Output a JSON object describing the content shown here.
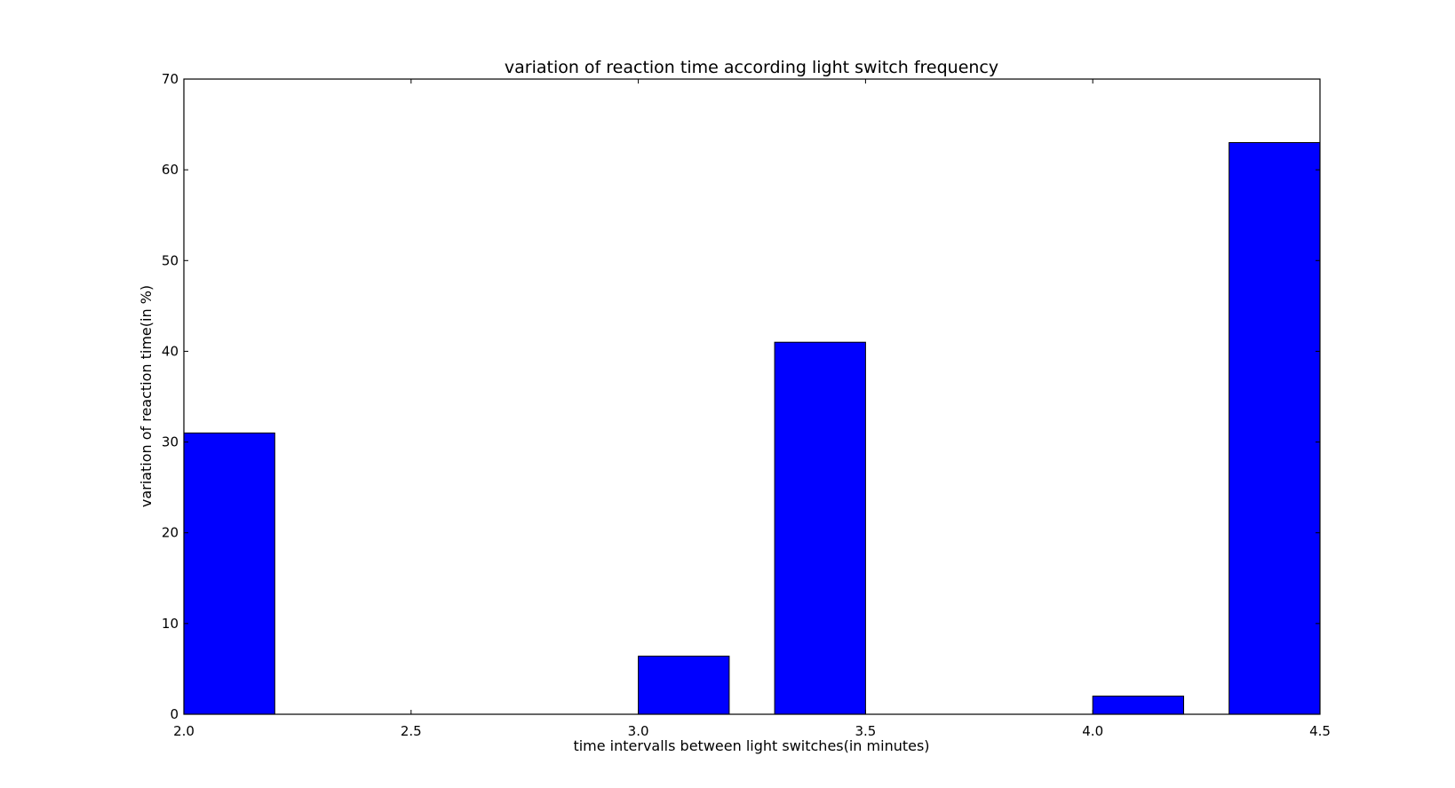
{
  "chart_data": {
    "type": "bar",
    "title": "variation of reaction time according light switch frequency",
    "xlabel": "time intervalls between light switches(in minutes)",
    "ylabel": "variation of reaction time(in %)",
    "xlim": [
      2.0,
      4.5
    ],
    "ylim": [
      0,
      70
    ],
    "xticks": [
      "2.0",
      "2.5",
      "3.0",
      "3.5",
      "4.0",
      "4.5"
    ],
    "xtick_values": [
      2.0,
      2.5,
      3.0,
      3.5,
      4.0,
      4.5
    ],
    "yticks": [
      "0",
      "10",
      "20",
      "30",
      "40",
      "50",
      "60",
      "70"
    ],
    "ytick_values": [
      0,
      10,
      20,
      30,
      40,
      50,
      60,
      70
    ],
    "bar_width": 0.2,
    "bars": [
      {
        "x": 2.0,
        "value": 31
      },
      {
        "x": 3.0,
        "value": 6.4
      },
      {
        "x": 3.3,
        "value": 41
      },
      {
        "x": 4.0,
        "value": 2
      },
      {
        "x": 4.3,
        "value": 63
      }
    ],
    "grid": false,
    "colors": {
      "bar": "#0000ff",
      "edge": "#000000",
      "axes": "#000000"
    }
  }
}
